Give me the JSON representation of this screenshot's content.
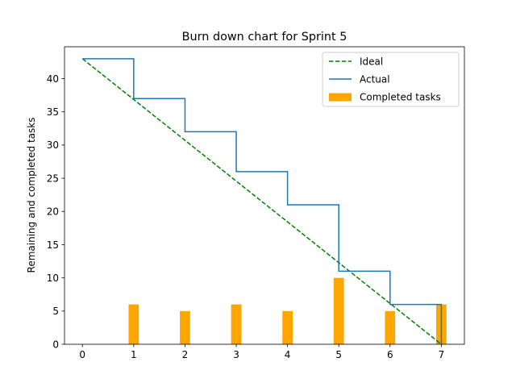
{
  "chart_data": {
    "type": "line",
    "title": "Burn down chart for Sprint 5",
    "xlabel": "",
    "ylabel": "Remaining and completed tasks",
    "xlim": [
      -0.35,
      7.45
    ],
    "ylim": [
      0,
      44.8
    ],
    "xticks": [
      0,
      1,
      2,
      3,
      4,
      5,
      6,
      7
    ],
    "yticks": [
      0,
      5,
      10,
      15,
      20,
      25,
      30,
      35,
      40
    ],
    "grid": false,
    "legend_position": "upper right",
    "series": [
      {
        "name": "Ideal",
        "kind": "line",
        "style": "dashed",
        "color": "#008000",
        "x": [
          0,
          7
        ],
        "values": [
          43,
          0
        ]
      },
      {
        "name": "Actual",
        "kind": "step-post",
        "style": "solid",
        "color": "#1f77b4",
        "x": [
          0,
          1,
          2,
          3,
          4,
          5,
          6,
          7
        ],
        "values": [
          43,
          37,
          32,
          26,
          21,
          11,
          6,
          0
        ]
      },
      {
        "name": "Completed tasks",
        "kind": "bar",
        "color": "#ffa500",
        "x": [
          1,
          2,
          3,
          4,
          5,
          6,
          7
        ],
        "values": [
          6,
          5,
          6,
          5,
          10,
          5,
          6
        ],
        "bar_width": 0.2
      }
    ]
  }
}
